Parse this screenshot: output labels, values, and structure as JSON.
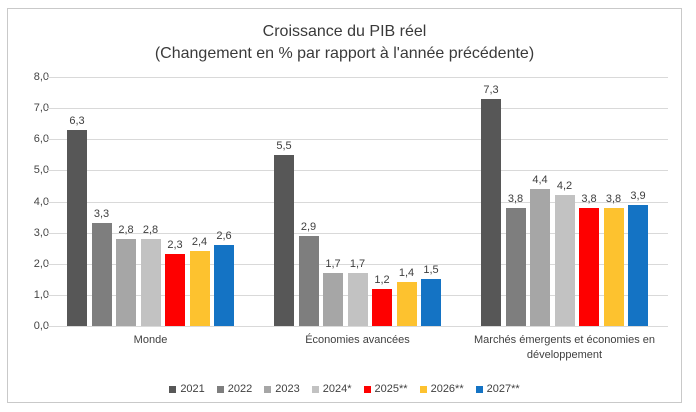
{
  "chart_data": {
    "type": "bar",
    "title": "Croissance du PIB réel",
    "subtitle": "(Changement en % par rapport à l'année précédente)",
    "categories": [
      "Monde",
      "Économies avancées",
      "Marchés émergents et économies en développement"
    ],
    "series": [
      {
        "name": "2021",
        "color": "#575757",
        "values": [
          6.3,
          5.5,
          7.3
        ]
      },
      {
        "name": "2022",
        "color": "#7E7E7E",
        "values": [
          3.3,
          2.9,
          3.8
        ]
      },
      {
        "name": "2023",
        "color": "#A6A6A6",
        "values": [
          2.8,
          1.7,
          4.4
        ]
      },
      {
        "name": "2024*",
        "color": "#C2C2C2",
        "values": [
          2.8,
          1.7,
          4.2
        ]
      },
      {
        "name": "2025**",
        "color": "#FE0000",
        "values": [
          2.3,
          1.2,
          3.8
        ]
      },
      {
        "name": "2026**",
        "color": "#FDC22F",
        "values": [
          2.4,
          1.4,
          3.8
        ]
      },
      {
        "name": "2027**",
        "color": "#1473C4",
        "values": [
          2.6,
          1.5,
          3.9
        ]
      }
    ],
    "ylim": [
      0,
      8
    ],
    "ytick_step": 1,
    "decimal_separator": ",",
    "grid": true,
    "legend_position": "bottom",
    "colors": {
      "frame_border": "#c9c9c9",
      "gridline": "#d9d9d9",
      "title_text": "#3a3a3a",
      "label_text": "#404040"
    }
  }
}
